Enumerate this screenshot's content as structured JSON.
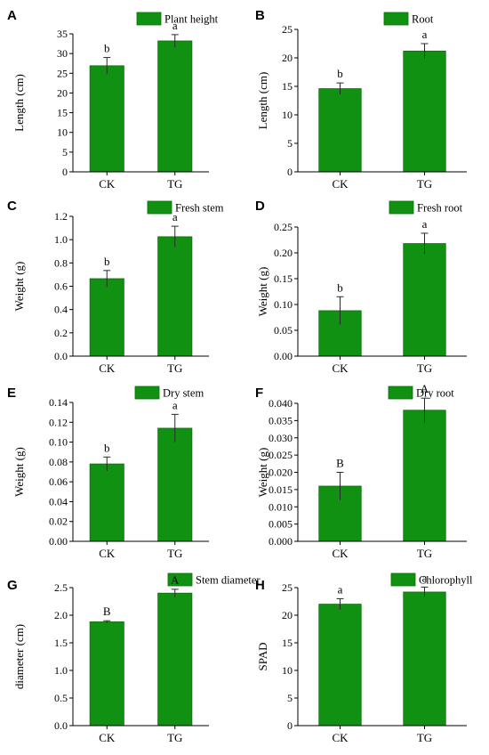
{
  "chart_data": [
    {
      "type": "bar",
      "panel": "A",
      "legend": "Plant height",
      "ylabel": "Length (cm)",
      "categories": [
        "CK",
        "TG"
      ],
      "values": [
        26.9,
        33.2
      ],
      "errors": [
        2.1,
        1.6
      ],
      "significance": [
        "b",
        "a"
      ],
      "ylim": [
        0,
        35
      ],
      "yticks": [
        "0",
        "5",
        "10",
        "15",
        "20",
        "25",
        "30",
        "35"
      ],
      "grid": false
    },
    {
      "type": "bar",
      "panel": "B",
      "legend": "Root",
      "ylabel": "Length (cm)",
      "categories": [
        "CK",
        "TG"
      ],
      "values": [
        14.6,
        21.2
      ],
      "errors": [
        1.0,
        1.3
      ],
      "significance": [
        "b",
        "a"
      ],
      "ylim": [
        0,
        25
      ],
      "yticks": [
        "0",
        "5",
        "10",
        "15",
        "20",
        "25"
      ],
      "grid": false
    },
    {
      "type": "bar",
      "panel": "C",
      "legend": "Fresh stem",
      "ylabel": "Weight (g)",
      "categories": [
        "CK",
        "TG"
      ],
      "values": [
        0.665,
        1.025
      ],
      "errors": [
        0.07,
        0.09
      ],
      "significance": [
        "b",
        "a"
      ],
      "ylim": [
        0,
        1.2
      ],
      "yticks": [
        "0.0",
        "0.2",
        "0.4",
        "0.6",
        "0.8",
        "1.0",
        "1.2"
      ],
      "grid": false
    },
    {
      "type": "bar",
      "panel": "D",
      "legend": "Fresh root",
      "ylabel": "Weight (g)",
      "categories": [
        "CK",
        "TG"
      ],
      "values": [
        0.088,
        0.218
      ],
      "errors": [
        0.027,
        0.02
      ],
      "significance": [
        "b",
        "a"
      ],
      "ylim": [
        0,
        0.25
      ],
      "yticks": [
        "0.00",
        "0.05",
        "0.10",
        "0.15",
        "0.20",
        "0.25"
      ],
      "grid": false
    },
    {
      "type": "bar",
      "panel": "E",
      "legend": "Dry stem",
      "ylabel": "Weight (g)",
      "categories": [
        "CK",
        "TG"
      ],
      "values": [
        0.078,
        0.114
      ],
      "errors": [
        0.007,
        0.014
      ],
      "significance": [
        "b",
        "a"
      ],
      "ylim": [
        0,
        0.14
      ],
      "yticks": [
        "0.00",
        "0.02",
        "0.04",
        "0.06",
        "0.08",
        "0.10",
        "0.12",
        "0.14"
      ],
      "grid": false
    },
    {
      "type": "bar",
      "panel": "F",
      "legend": "Dry root",
      "ylabel": "Weight (g)",
      "categories": [
        "CK",
        "TG"
      ],
      "values": [
        0.016,
        0.038
      ],
      "errors": [
        0.004,
        0.0035
      ],
      "significance": [
        "B",
        "A"
      ],
      "ylim": [
        0,
        0.04
      ],
      "yticks": [
        "0.000",
        "0.005",
        "0.010",
        "0.015",
        "0.020",
        "0.025",
        "0.030",
        "0.035",
        "0.040"
      ],
      "grid": false
    },
    {
      "type": "bar",
      "panel": "G",
      "legend": "Stem diameter",
      "ylabel": "diameter (cm)",
      "categories": [
        "CK",
        "TG"
      ],
      "values": [
        1.88,
        2.4
      ],
      "errors": [
        0.02,
        0.07
      ],
      "significance": [
        "B",
        "A"
      ],
      "ylim": [
        0,
        2.5
      ],
      "yticks": [
        "0.0",
        "0.5",
        "1.0",
        "1.5",
        "2.0",
        "2.5"
      ],
      "grid": false
    },
    {
      "type": "bar",
      "panel": "H",
      "legend": "Chlorophyll",
      "ylabel": "SPAD",
      "categories": [
        "CK",
        "TG"
      ],
      "values": [
        22.0,
        24.2
      ],
      "errors": [
        1.0,
        0.9
      ],
      "significance": [
        "a",
        "a"
      ],
      "ylim": [
        0,
        25
      ],
      "yticks": [
        "0",
        "5",
        "10",
        "15",
        "20",
        "25"
      ],
      "grid": false
    }
  ],
  "colors": {
    "bar": "#119111",
    "bar_stroke": "#0b6e0b",
    "axis": "#000000"
  }
}
